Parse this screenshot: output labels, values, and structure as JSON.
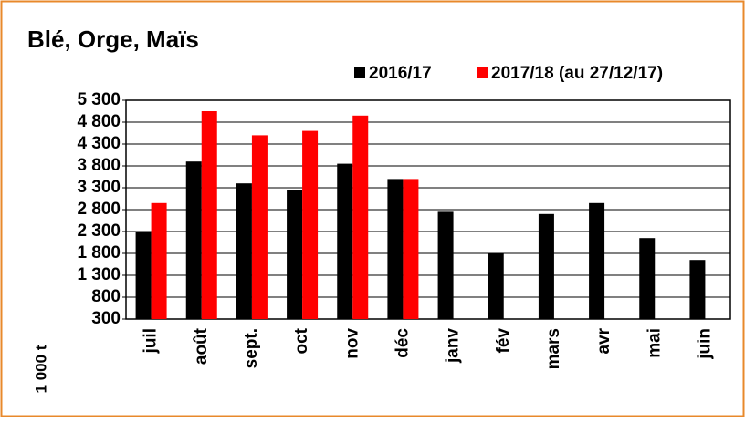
{
  "chart_data": {
    "type": "bar",
    "title": "Blé, Orge, Maïs",
    "y_axis_label": "1 000 t",
    "categories": [
      "juil",
      "août",
      "sept.",
      "oct",
      "nov",
      "déc",
      "janv",
      "fév",
      "mars",
      "avr",
      "mai",
      "juin"
    ],
    "series": [
      {
        "name": "2016/17",
        "color": "#000000",
        "values": [
          2300,
          3900,
          3400,
          3250,
          3850,
          3500,
          2750,
          1800,
          2700,
          2950,
          2150,
          1650
        ]
      },
      {
        "name": "2017/18 (au 27/12/17)",
        "color": "#ff0000",
        "values": [
          2950,
          5050,
          4500,
          4600,
          4950,
          3500,
          null,
          null,
          null,
          null,
          null,
          null
        ]
      }
    ],
    "ylim": [
      300,
      5300
    ],
    "yticks": [
      300,
      800,
      {
        "value": 1300,
        "label": "1 300"
      },
      {
        "value": 1800,
        "label": "1 800"
      },
      {
        "value": 2300,
        "label": "2 300"
      },
      {
        "value": 2800,
        "label": "2 800"
      },
      {
        "value": 3300,
        "label": "3 300"
      },
      {
        "value": 3800,
        "label": "3 800"
      },
      {
        "value": 4300,
        "label": "4 300"
      },
      {
        "value": 4800,
        "label": "4 800"
      },
      {
        "value": 5300,
        "label": "5 300"
      }
    ],
    "grid": true,
    "legend": "top-right"
  }
}
